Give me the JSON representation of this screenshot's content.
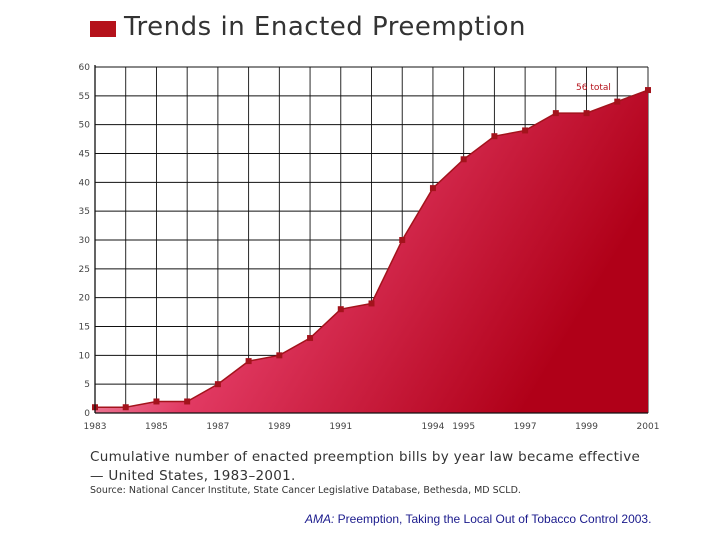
{
  "header": {
    "title": "Trends in Enacted Preemption"
  },
  "caption": {
    "text": "Cumulative number of enacted preemption bills by year law became effective — United States, 1983–2001.",
    "source": "Source: National Cancer Institute, State Cancer Legislative Database, Bethesda, MD SCLD."
  },
  "citation": {
    "lead": "AMA:",
    "text": " Preemption, Taking the Local Out of Tobacco Control 2003."
  },
  "colors": {
    "accent": "#b5121b",
    "fill_light": "#f7dde3",
    "fill_dark": "#b00018",
    "marker": "#a3131c"
  },
  "chart_data": {
    "type": "area",
    "title": "Trends in Enacted Preemption",
    "xlabel": "",
    "ylabel": "",
    "x": [
      1983,
      1984,
      1985,
      1986,
      1987,
      1988,
      1989,
      1990,
      1991,
      1992,
      1993,
      1994,
      1995,
      1996,
      1997,
      1998,
      1999,
      2000,
      2001
    ],
    "series": [
      {
        "values": [
          1,
          1,
          2,
          2,
          5,
          9,
          10,
          13,
          18,
          19,
          30,
          39,
          44,
          48,
          49,
          52,
          52,
          54,
          56
        ]
      }
    ],
    "ylim": [
      0,
      60
    ],
    "yticks": [
      0,
      5,
      10,
      15,
      20,
      25,
      30,
      35,
      40,
      45,
      50,
      55,
      60
    ],
    "xtick_labels": [
      "1983",
      "1985",
      "1987",
      "1989",
      "1991",
      "1994",
      "1995",
      "1997",
      "1999",
      "2001"
    ],
    "annotation": "56 total",
    "grid": true
  }
}
